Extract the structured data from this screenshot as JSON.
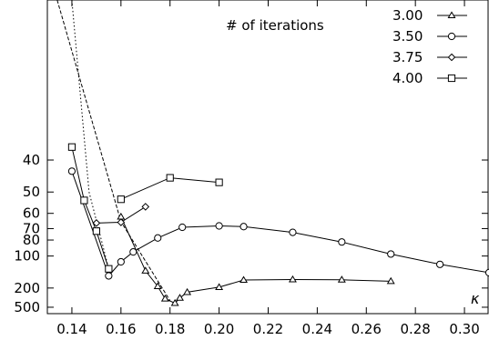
{
  "chart_data": {
    "type": "line",
    "title": "",
    "annotation": "# of iterations",
    "xlabel": "κ",
    "ylabel": "",
    "xlim": [
      0.13,
      0.31
    ],
    "y_scale": "reciprocal",
    "ylim": [
      1000,
      20
    ],
    "x_ticks": [
      0.14,
      0.16,
      0.18,
      0.2,
      0.22,
      0.24,
      0.26,
      0.28,
      0.3
    ],
    "x_tick_labels": [
      "0.14",
      "0.16",
      "0.18",
      "0.20",
      "0.22",
      "0.24",
      "0.26",
      "0.28",
      "0.30"
    ],
    "y_ticks": [
      40,
      50,
      60,
      70,
      80,
      100,
      200,
      500
    ],
    "y_tick_labels": [
      "40",
      "50",
      "60",
      "70",
      "80",
      "100",
      "200",
      "500"
    ],
    "grid": false,
    "legend_position": "top-right",
    "series": [
      {
        "name": "3.00",
        "marker": "triangle",
        "x": [
          0.16,
          0.17,
          0.175,
          0.178,
          0.182,
          0.184,
          0.187,
          0.2,
          0.21,
          0.23,
          0.25,
          0.27
        ],
        "y": [
          62,
          130,
          190,
          300,
          380,
          290,
          230,
          195,
          160,
          158,
          159,
          165
        ]
      },
      {
        "name": "3.50",
        "marker": "circle",
        "x": [
          0.14,
          0.155,
          0.16,
          0.165,
          0.175,
          0.185,
          0.2,
          0.21,
          0.23,
          0.25,
          0.27,
          0.29,
          0.31
        ],
        "y": [
          43,
          145,
          110,
          94,
          78,
          69,
          68,
          68.5,
          73,
          82,
          97,
          115,
          135
        ]
      },
      {
        "name": "3.75",
        "marker": "diamond",
        "x": [
          0.15,
          0.16,
          0.17
        ],
        "y": [
          66,
          65.5,
          56.5
        ]
      },
      {
        "name": "4.00",
        "marker": "square",
        "x": [
          0.14,
          0.145,
          0.15,
          0.155
        ],
        "y": [
          37,
          53.5,
          72,
          125
        ]
      },
      {
        "name": "",
        "marker": "square",
        "x": [
          0.16,
          0.18,
          0.2
        ],
        "y": [
          53,
          45,
          46.5
        ]
      }
    ],
    "guide_lines": [
      {
        "style": "dashed",
        "x": [
          0.134,
          0.16,
          0.18
        ],
        "y": [
          20,
          65,
          330
        ]
      },
      {
        "style": "dotted",
        "x": [
          0.14,
          0.147,
          0.155
        ],
        "y": [
          20,
          50,
          125
        ]
      }
    ]
  }
}
